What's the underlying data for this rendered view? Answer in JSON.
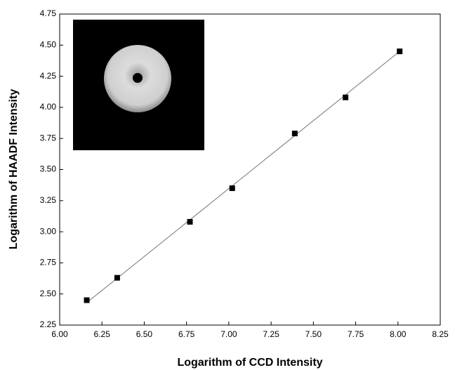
{
  "chart_data": {
    "type": "scatter",
    "xlabel": "Logarithm of CCD Intensity",
    "ylabel": "Logarithm of HAADF Intensity",
    "x": [
      6.16,
      6.34,
      6.77,
      7.02,
      7.39,
      7.69,
      8.01
    ],
    "values": [
      2.45,
      2.63,
      3.08,
      3.35,
      3.79,
      4.08,
      4.45
    ],
    "color": "#000000",
    "fit": {
      "x": [
        6.16,
        8.01
      ],
      "values": [
        2.43,
        4.45
      ],
      "color": "#777777"
    },
    "xlim": [
      6.0,
      8.25
    ],
    "ylim": [
      2.25,
      4.75
    ],
    "xticks": [
      {
        "value": 6.0,
        "label": "6.00"
      },
      {
        "value": 6.25,
        "label": "6.25"
      },
      {
        "value": 6.5,
        "label": "6.50"
      },
      {
        "value": 6.75,
        "label": "6.75"
      },
      {
        "value": 7.0,
        "label": "7.00"
      },
      {
        "value": 7.25,
        "label": "7.25"
      },
      {
        "value": 7.5,
        "label": "7.50"
      },
      {
        "value": 7.75,
        "label": "7.75"
      },
      {
        "value": 8.0,
        "label": "8.00"
      },
      {
        "value": 8.25,
        "label": "8.25"
      }
    ],
    "yticks": [
      {
        "value": 2.25,
        "label": "2.25"
      },
      {
        "value": 2.5,
        "label": "2.50"
      },
      {
        "value": 2.75,
        "label": "2.75"
      },
      {
        "value": 3.0,
        "label": "3.00"
      },
      {
        "value": 3.25,
        "label": "3.25"
      },
      {
        "value": 3.5,
        "label": "3.50"
      },
      {
        "value": 3.75,
        "label": "3.75"
      },
      {
        "value": 4.0,
        "label": "4.00"
      },
      {
        "value": 4.25,
        "label": "4.25"
      },
      {
        "value": 4.5,
        "label": "4.50"
      },
      {
        "value": 4.75,
        "label": "4.75"
      }
    ]
  }
}
